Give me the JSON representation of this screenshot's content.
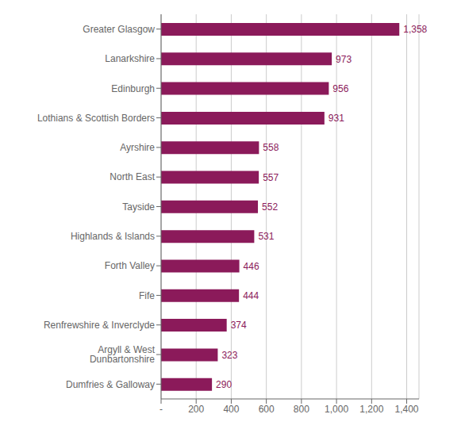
{
  "chart_data": {
    "type": "bar",
    "orientation": "horizontal",
    "categories": [
      "Dumfries & Galloway",
      "Argyll & West Dunbartonshire",
      "Renfrewshire & Inverclyde",
      "Fife",
      "Forth Valley",
      "Highlands & Islands",
      "Tayside",
      "North East",
      "Ayrshire",
      "Lothians & Scottish Borders",
      "Edinburgh",
      "Lanarkshire",
      "Greater Glasgow"
    ],
    "values": [
      290,
      323,
      374,
      444,
      446,
      531,
      552,
      557,
      558,
      931,
      956,
      973,
      1358
    ],
    "value_labels": [
      "290",
      "323",
      "374",
      "444",
      "446",
      "531",
      "552",
      "557",
      "558",
      "931",
      "956",
      "973",
      "1,358"
    ],
    "data_labels": true,
    "color": "#8B1A5A",
    "xlim": [
      0,
      1470
    ],
    "xticks": [
      {
        "value": 0,
        "label": "-"
      },
      200,
      400,
      600,
      800,
      {
        "value": 1000,
        "label": "1,000"
      },
      {
        "value": 1200,
        "label": "1,200"
      },
      {
        "value": 1400,
        "label": "1,400"
      }
    ],
    "grid": true
  }
}
